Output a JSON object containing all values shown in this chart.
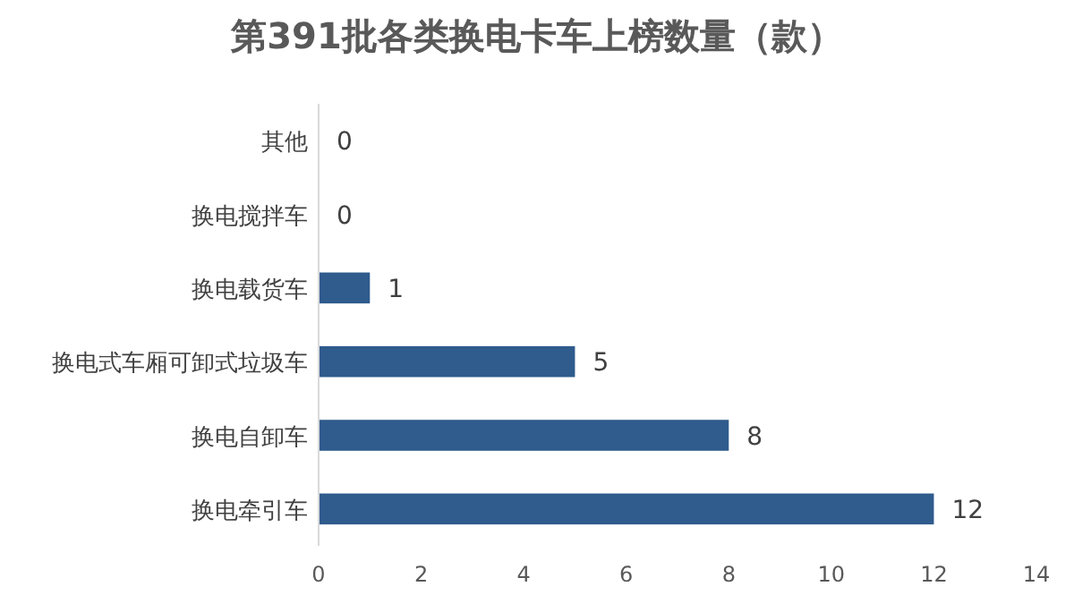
{
  "chart_data": {
    "type": "bar",
    "orientation": "horizontal",
    "title": "第391批各类换电卡车上榜数量（款）",
    "categories": [
      "其他",
      "换电搅拌车",
      "换电载货车",
      "换电式车厢可卸式垃圾车",
      "换电自卸车",
      "换电牵引车"
    ],
    "values": [
      0,
      0,
      1,
      5,
      8,
      12
    ],
    "color": "#2f5b8d",
    "xlim": [
      0,
      14
    ],
    "xticks": [
      0,
      2,
      4,
      6,
      8,
      10,
      12,
      14
    ],
    "data_labels": true
  }
}
